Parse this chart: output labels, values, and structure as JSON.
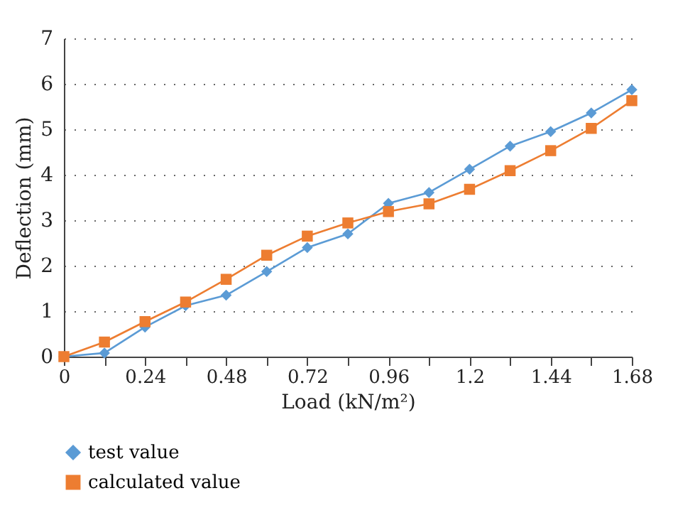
{
  "chart_data": {
    "type": "line",
    "xlabel": "Load (kN/m²)",
    "ylabel": "Deflection (mm)",
    "x": [
      0,
      0.12,
      0.24,
      0.36,
      0.48,
      0.6,
      0.72,
      0.84,
      0.96,
      1.08,
      1.2,
      1.32,
      1.44,
      1.56,
      1.68
    ],
    "series": [
      {
        "name": "test value",
        "color": "#5b9bd5",
        "marker": "diamond",
        "values": [
          0,
          0.08,
          0.65,
          1.12,
          1.35,
          1.87,
          2.4,
          2.7,
          3.37,
          3.61,
          4.12,
          4.63,
          4.95,
          5.36,
          5.87
        ]
      },
      {
        "name": "calculated value",
        "color": "#ed7d31",
        "marker": "square",
        "values": [
          0,
          0.32,
          0.77,
          1.2,
          1.7,
          2.23,
          2.65,
          2.94,
          3.19,
          3.36,
          3.68,
          4.09,
          4.53,
          5.02,
          5.63
        ]
      }
    ],
    "xlim": [
      0,
      1.68
    ],
    "ylim": [
      0,
      7
    ],
    "xticks": [
      0,
      {
        "value": 0.12,
        "label": null
      },
      0.24,
      {
        "value": 0.36,
        "label": null
      },
      0.48,
      {
        "value": 0.6,
        "label": null
      },
      0.72,
      {
        "value": 0.84,
        "label": null
      },
      0.96,
      {
        "value": 1.08,
        "label": null
      },
      1.2,
      {
        "value": 1.32,
        "label": null
      },
      1.44,
      {
        "value": 1.56,
        "label": null
      },
      1.68
    ],
    "yticks": [
      0,
      1,
      2,
      3,
      4,
      5,
      6,
      7
    ],
    "grid": "y",
    "legend": "bottom left",
    "line_style": "solid"
  }
}
